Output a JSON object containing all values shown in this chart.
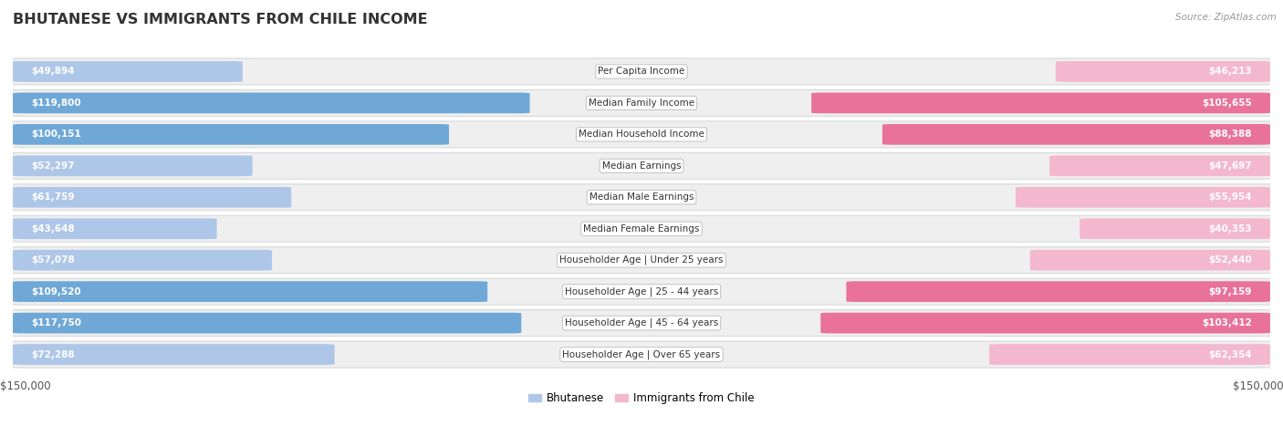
{
  "title": "BHUTANESE VS IMMIGRANTS FROM CHILE INCOME",
  "source": "Source: ZipAtlas.com",
  "categories": [
    "Per Capita Income",
    "Median Family Income",
    "Median Household Income",
    "Median Earnings",
    "Median Male Earnings",
    "Median Female Earnings",
    "Householder Age | Under 25 years",
    "Householder Age | 25 - 44 years",
    "Householder Age | 45 - 64 years",
    "Householder Age | Over 65 years"
  ],
  "bhutanese_values": [
    49894,
    119800,
    100151,
    52297,
    61759,
    43648,
    57078,
    109520,
    117750,
    72288
  ],
  "chile_values": [
    46213,
    105655,
    88388,
    47697,
    55954,
    40353,
    52440,
    97159,
    103412,
    62354
  ],
  "bhutanese_labels": [
    "$49,894",
    "$119,800",
    "$100,151",
    "$52,297",
    "$61,759",
    "$43,648",
    "$57,078",
    "$109,520",
    "$117,750",
    "$72,288"
  ],
  "chile_labels": [
    "$46,213",
    "$105,655",
    "$88,388",
    "$47,697",
    "$55,954",
    "$40,353",
    "$52,440",
    "$97,159",
    "$103,412",
    "$62,354"
  ],
  "blue_light": "#aec6e8",
  "blue_dark": "#6fa8d6",
  "pink_light": "#f4b8ce",
  "pink_dark": "#e8729a",
  "max_value": 150000,
  "background_color": "#ffffff",
  "row_bg": "#f0f0f0",
  "legend_bhutanese": "Bhutanese",
  "legend_chile": "Immigrants from Chile",
  "xlabel_left": "$150,000",
  "xlabel_right": "$150,000",
  "inner_label_threshold": 80000
}
